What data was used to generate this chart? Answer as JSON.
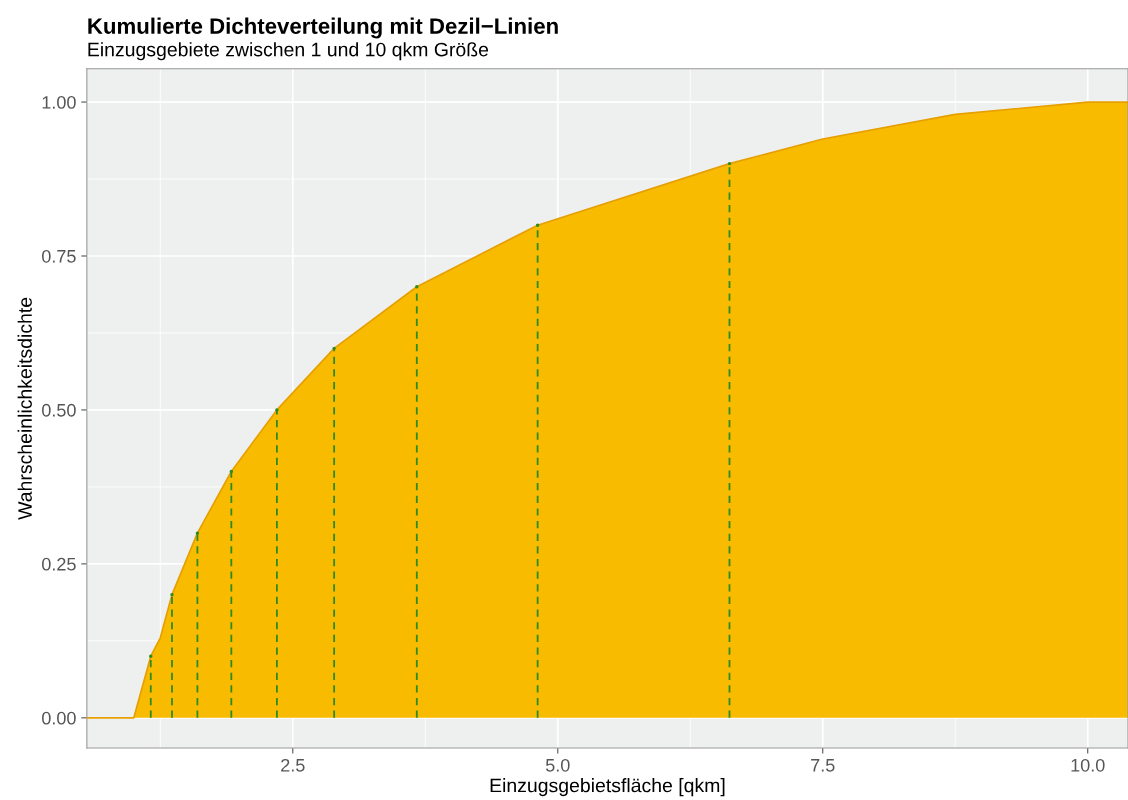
{
  "chart_data": {
    "type": "area",
    "title": "Kumulierte Dichteverteilung mit Dezil−Linien",
    "subtitle": "Einzugsgebiete zwischen 1 und 10 qkm Größe",
    "xlabel": "Einzugsgebietsfläche [qkm]",
    "ylabel": "Wahrscheinlichkeitsdichte",
    "series": [
      {
        "color": "#f9bb00",
        "x": [
          0.557,
          1.0,
          1.16,
          1.25,
          1.36,
          1.6,
          1.92,
          2.35,
          2.89,
          3.67,
          4.81,
          6.62,
          7.5,
          8.75,
          10.0,
          10.38
        ],
        "values": [
          0,
          0,
          0.1,
          0.13,
          0.2,
          0.3,
          0.4,
          0.5,
          0.6,
          0.7,
          0.8,
          0.9,
          0.94,
          0.98,
          1.0,
          1.0
        ]
      },
      {
        "type": "lollipop",
        "color": "#2e8b22",
        "line_style": "dashed",
        "x": [
          1.16,
          1.36,
          1.6,
          1.92,
          2.35,
          2.89,
          3.67,
          4.81,
          6.62
        ],
        "values": [
          0.1,
          0.2,
          0.3,
          0.4,
          0.5,
          0.6,
          0.7,
          0.8,
          0.9
        ]
      }
    ],
    "xlim": [
      0.557,
      10.38
    ],
    "ylim": [
      -0.049,
      1.054
    ],
    "xticks": [
      2.5,
      {
        "value": 5.0,
        "label": "5.0"
      },
      7.5,
      {
        "value": 10.0,
        "label": "10.0"
      }
    ],
    "yticks": [
      {
        "value": 0,
        "label": "0.00"
      },
      {
        "value": 0.25,
        "label": "0.25"
      },
      {
        "value": 0.5,
        "label": "0.50"
      },
      {
        "value": 0.75,
        "label": "0.75"
      },
      {
        "value": 1.0,
        "label": "1.00"
      }
    ],
    "grid": true
  }
}
